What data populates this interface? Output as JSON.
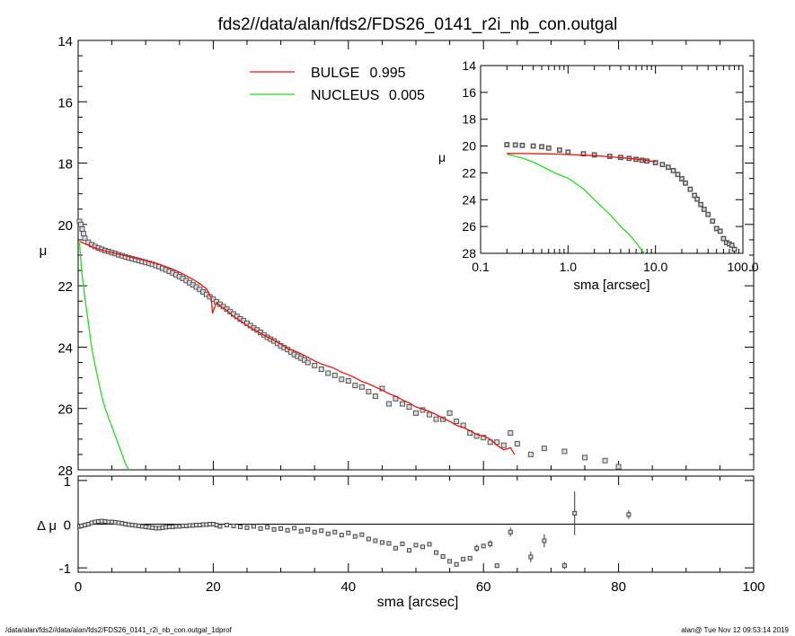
{
  "figure": {
    "title": "fds2//data/alan/fds2/FDS26_0141_r2i_nb_con.outgal",
    "footer_left": "/data/alan/fds2//data/alan/fds2/FDS26_0141_r2i_nb_con.outgal_1dprof",
    "footer_right": "alan@  Tue Nov 12 09:53:14 2019"
  },
  "colors": {
    "bulge": "#ee1111",
    "nucleus": "#22dd22",
    "data": "#555555",
    "axes": "#000000"
  },
  "chart_data": [
    {
      "id": "main",
      "type": "line",
      "ylabel": "μ",
      "xlim": [
        0,
        100
      ],
      "ylim": [
        28,
        14
      ],
      "y_inverted": true,
      "yticks": [
        14,
        16,
        18,
        20,
        22,
        24,
        26,
        28
      ],
      "grid": false,
      "legend": [
        {
          "name": "BULGE",
          "value": "0.995",
          "color": "#ee1111"
        },
        {
          "name": "NUCLEUS",
          "value": "0.005",
          "color": "#22dd22"
        }
      ],
      "legend_placement": "top-center",
      "series": [
        {
          "name": "BULGE",
          "kind": "line",
          "color": "#ee1111",
          "x": [
            0.2,
            1,
            2,
            3,
            4,
            5,
            6,
            7,
            8,
            9,
            10,
            11,
            12,
            13,
            14,
            15,
            16,
            17,
            18,
            19,
            19.7,
            19.9,
            20.1,
            20.5,
            21,
            22,
            23,
            24,
            25,
            26,
            27,
            28,
            29,
            30,
            31,
            32,
            33,
            34,
            35,
            36,
            37,
            38,
            39,
            40,
            41,
            42,
            43,
            44,
            45,
            46,
            47,
            48,
            49,
            50,
            51,
            52,
            53,
            54,
            55,
            56,
            57,
            58,
            59,
            60,
            61,
            62,
            63,
            64,
            64.6
          ],
          "y": [
            20.55,
            20.63,
            20.72,
            20.8,
            20.86,
            20.92,
            20.97,
            21.02,
            21.08,
            21.13,
            21.18,
            21.24,
            21.3,
            21.38,
            21.46,
            21.56,
            21.67,
            21.79,
            21.93,
            22.1,
            22.4,
            22.9,
            22.75,
            22.55,
            22.65,
            22.8,
            23.0,
            23.14,
            23.3,
            23.42,
            23.55,
            23.67,
            23.78,
            23.9,
            24.05,
            24.12,
            24.22,
            24.33,
            24.45,
            24.55,
            24.62,
            24.7,
            24.82,
            24.9,
            25.0,
            25.12,
            25.2,
            25.3,
            25.4,
            25.52,
            25.6,
            25.72,
            25.82,
            25.95,
            26.02,
            26.1,
            26.2,
            26.32,
            26.42,
            26.55,
            26.62,
            26.72,
            26.85,
            26.9,
            27.0,
            27.2,
            27.35,
            27.28,
            27.5
          ]
        },
        {
          "name": "NUCLEUS",
          "kind": "line",
          "color": "#22dd22",
          "x": [
            0.2,
            0.5,
            1,
            1.5,
            2,
            2.5,
            3,
            3.5,
            4,
            4.5,
            5,
            5.5,
            6,
            6.5,
            7,
            7.5
          ],
          "y": [
            20.6,
            21.5,
            22.4,
            23.2,
            24.0,
            24.6,
            25.1,
            25.6,
            26.0,
            26.3,
            26.6,
            26.9,
            27.2,
            27.5,
            27.8,
            28.0
          ]
        },
        {
          "name": "data",
          "kind": "points",
          "color": "#555555",
          "x": [
            0.2,
            0.4,
            0.6,
            0.8,
            1,
            1.5,
            2,
            2.5,
            3,
            3.5,
            4,
            4.5,
            5,
            5.5,
            6,
            6.5,
            7,
            7.5,
            8,
            8.5,
            9,
            9.5,
            10,
            10.5,
            11,
            11.5,
            12,
            12.5,
            13,
            13.5,
            14,
            14.5,
            15,
            15.5,
            16,
            16.5,
            17,
            17.5,
            18,
            18.5,
            19,
            19.5,
            20,
            20.5,
            21,
            21.5,
            22,
            22.5,
            23,
            23.5,
            24,
            24.5,
            25,
            25.5,
            26,
            26.5,
            27,
            27.5,
            28,
            28.5,
            29,
            29.5,
            30,
            30.5,
            31,
            31.5,
            32,
            32.5,
            33,
            33.5,
            34,
            35,
            36,
            37,
            38,
            39,
            40,
            41,
            42,
            43,
            44,
            45,
            46,
            47,
            48,
            49,
            50,
            51,
            52,
            53,
            54,
            55,
            56,
            57,
            58,
            59,
            60,
            61,
            62,
            63,
            64,
            65,
            67,
            69,
            72,
            75,
            78,
            80
          ],
          "y": [
            19.9,
            20.0,
            20.15,
            20.3,
            20.45,
            20.58,
            20.66,
            20.72,
            20.77,
            20.81,
            20.85,
            20.88,
            20.92,
            20.95,
            20.99,
            21.02,
            21.06,
            21.09,
            21.12,
            21.15,
            21.18,
            21.21,
            21.24,
            21.27,
            21.3,
            21.34,
            21.38,
            21.43,
            21.48,
            21.53,
            21.58,
            21.64,
            21.7,
            21.76,
            21.83,
            21.9,
            21.97,
            22.04,
            22.12,
            22.2,
            22.28,
            22.36,
            22.44,
            22.52,
            22.6,
            22.68,
            22.76,
            22.84,
            22.92,
            23.0,
            23.08,
            23.14,
            23.22,
            23.3,
            23.38,
            23.44,
            23.52,
            23.6,
            23.68,
            23.74,
            23.8,
            23.88,
            23.96,
            24.02,
            24.08,
            24.16,
            24.24,
            24.3,
            24.36,
            24.42,
            24.5,
            24.6,
            24.72,
            24.85,
            24.92,
            25.05,
            25.1,
            25.25,
            25.3,
            25.45,
            25.6,
            25.35,
            25.85,
            25.68,
            25.85,
            25.95,
            26.15,
            26.05,
            26.2,
            26.35,
            26.35,
            26.15,
            26.42,
            26.55,
            26.8,
            26.9,
            26.95,
            27.1,
            27.1,
            27.2,
            26.8,
            27.15,
            27.5,
            27.3,
            27.4,
            27.6,
            27.7,
            27.9
          ]
        }
      ]
    },
    {
      "id": "inset",
      "type": "line",
      "xlabel": "sma [arcsec]",
      "ylabel": "μ",
      "x_scale": "log",
      "xlim": [
        0.1,
        100
      ],
      "xticks": [
        0.1,
        1.0,
        10.0,
        100.0
      ],
      "xtick_labels": [
        "0.1",
        "1.0",
        "10.0",
        "100.0"
      ],
      "ylim": [
        28,
        14
      ],
      "yticks": [
        14,
        16,
        18,
        20,
        22,
        24,
        26,
        28
      ],
      "series": [
        {
          "name": "BULGE",
          "kind": "line",
          "color": "#ee1111",
          "x": [
            0.2,
            0.3,
            0.5,
            0.7,
            1,
            1.5,
            2,
            3,
            5,
            7,
            10
          ],
          "y": [
            20.55,
            20.56,
            20.58,
            20.6,
            20.63,
            20.68,
            20.72,
            20.8,
            20.92,
            21.02,
            21.18
          ]
        },
        {
          "name": "NUCLEUS",
          "kind": "line",
          "color": "#22dd22",
          "x": [
            0.2,
            0.3,
            0.4,
            0.5,
            0.7,
            1,
            1.5,
            2,
            3,
            4,
            5,
            6,
            7,
            7.5
          ],
          "y": [
            20.6,
            20.9,
            21.2,
            21.5,
            22.0,
            22.4,
            23.2,
            24.0,
            25.1,
            26.0,
            26.6,
            27.2,
            27.8,
            28.0
          ]
        },
        {
          "name": "data",
          "kind": "points",
          "color": "#555555",
          "x": [
            0.2,
            0.25,
            0.3,
            0.4,
            0.5,
            0.6,
            0.8,
            1,
            1.5,
            2,
            3,
            4,
            5,
            6,
            7,
            8,
            10,
            12,
            14,
            16,
            18,
            20,
            22,
            25,
            28,
            30,
            33,
            36,
            40,
            45,
            50,
            55,
            60,
            65,
            70,
            75,
            80
          ],
          "y": [
            19.9,
            19.92,
            19.95,
            20.0,
            20.05,
            20.15,
            20.3,
            20.45,
            20.58,
            20.66,
            20.77,
            20.85,
            20.92,
            20.99,
            21.06,
            21.12,
            21.24,
            21.38,
            21.58,
            21.83,
            22.12,
            22.44,
            22.76,
            23.22,
            23.68,
            23.96,
            24.36,
            24.72,
            25.1,
            25.6,
            26.15,
            26.35,
            26.9,
            27.2,
            27.3,
            27.4,
            27.7
          ]
        }
      ]
    },
    {
      "id": "residual",
      "type": "scatter",
      "xlabel": "sma [arcsec]",
      "ylabel": "Δ μ",
      "xlim": [
        0,
        100
      ],
      "xticks": [
        0,
        20,
        40,
        60,
        80,
        100
      ],
      "ylim": [
        -1.1,
        1.1
      ],
      "yticks": [
        -1,
        0,
        1
      ],
      "zero_line": true,
      "points": {
        "x": [
          0.2,
          0.5,
          1,
          1.5,
          2,
          2.5,
          3,
          3.5,
          4,
          4.5,
          5,
          5.5,
          6,
          6.5,
          7,
          7.5,
          8,
          8.5,
          9,
          9.5,
          10,
          10.5,
          11,
          11.5,
          12,
          12.5,
          13,
          13.5,
          14,
          14.5,
          15,
          15.5,
          16,
          16.5,
          17,
          17.5,
          18,
          18.5,
          19,
          19.5,
          20,
          20.5,
          21,
          22,
          23,
          24,
          25,
          26,
          27,
          28,
          29,
          30,
          31,
          32,
          33,
          34,
          35,
          36,
          37,
          38,
          39,
          40,
          41,
          42,
          43,
          44,
          45,
          46,
          47,
          48,
          49,
          50,
          51,
          52,
          53,
          54,
          55,
          56,
          57,
          58,
          59,
          60,
          61,
          62,
          64,
          67,
          69,
          72,
          73.5,
          81.5
        ],
        "y": [
          -0.05,
          -0.04,
          -0.02,
          0.0,
          0.03,
          0.05,
          0.06,
          0.07,
          0.06,
          0.05,
          0.05,
          0.04,
          0.03,
          0.02,
          0.0,
          -0.01,
          -0.02,
          -0.03,
          -0.04,
          -0.05,
          -0.06,
          -0.07,
          -0.08,
          -0.09,
          -0.09,
          -0.08,
          -0.07,
          -0.06,
          -0.06,
          -0.05,
          -0.05,
          -0.04,
          -0.04,
          -0.03,
          -0.03,
          -0.02,
          -0.02,
          -0.01,
          -0.01,
          0.0,
          0.0,
          -0.02,
          -0.05,
          -0.02,
          -0.04,
          -0.06,
          -0.08,
          -0.05,
          -0.1,
          -0.07,
          -0.12,
          -0.1,
          -0.14,
          -0.09,
          -0.16,
          -0.12,
          -0.18,
          -0.15,
          -0.22,
          -0.18,
          -0.25,
          -0.2,
          -0.28,
          -0.24,
          -0.34,
          -0.38,
          -0.42,
          -0.44,
          -0.55,
          -0.45,
          -0.6,
          -0.48,
          -0.52,
          -0.46,
          -0.65,
          -0.74,
          -0.85,
          -0.92,
          -0.8,
          -0.78,
          -0.55,
          -0.5,
          -0.45,
          -0.95,
          -0.18,
          -0.75,
          -0.38,
          -0.95,
          0.25,
          0.22
        ],
        "err": [
          0,
          0,
          0,
          0,
          0,
          0,
          0,
          0,
          0,
          0,
          0,
          0,
          0,
          0,
          0,
          0,
          0,
          0,
          0,
          0,
          0,
          0,
          0,
          0,
          0,
          0,
          0,
          0,
          0,
          0,
          0,
          0,
          0,
          0,
          0,
          0,
          0,
          0,
          0,
          0,
          0,
          0,
          0,
          0,
          0,
          0,
          0,
          0,
          0,
          0,
          0,
          0,
          0,
          0,
          0,
          0,
          0,
          0,
          0,
          0,
          0,
          0,
          0,
          0,
          0,
          0,
          0,
          0,
          0,
          0,
          0,
          0,
          0,
          0,
          0,
          0,
          0,
          0,
          0,
          0,
          0.08,
          0,
          0.08,
          0.05,
          0.1,
          0.12,
          0.15,
          0.08,
          0.5,
          0.1
        ]
      }
    }
  ]
}
